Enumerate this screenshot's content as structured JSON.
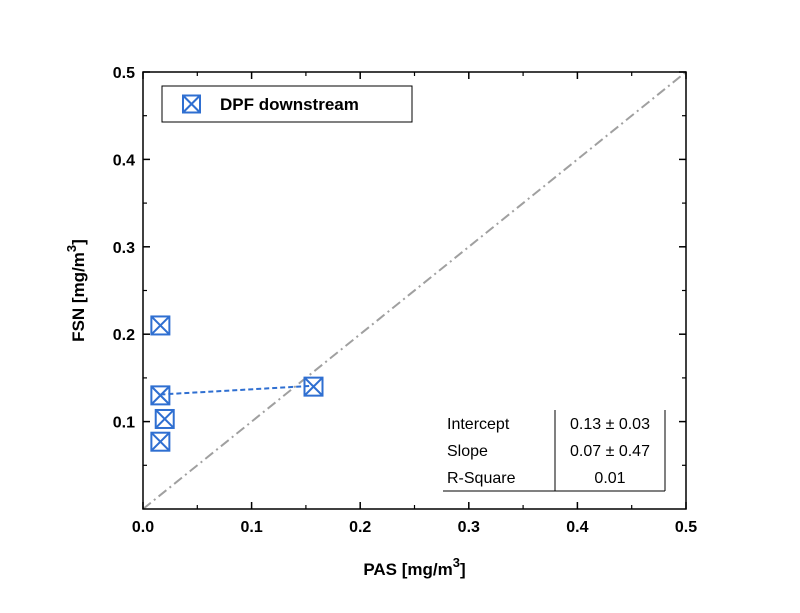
{
  "chart_data": {
    "type": "scatter",
    "xlabel_main": "PAS [mg/m",
    "xlabel_sup": "3",
    "xlabel_tail": "]",
    "ylabel_main": "FSN [mg/m",
    "ylabel_sup": "3",
    "ylabel_tail": "]",
    "xlim": [
      0,
      0.5
    ],
    "ylim": [
      0,
      0.5
    ],
    "x_ticks": [
      "0.0",
      "0.1",
      "0.2",
      "0.3",
      "0.4",
      "0.5"
    ],
    "y_ticks": [
      "0.1",
      "0.2",
      "0.3",
      "0.4",
      "0.5"
    ],
    "legend_position": "top-left",
    "series": [
      {
        "name": "DPF downstream",
        "color": "#2f6fd1",
        "marker": "square-x",
        "x": [
          0.016,
          0.016,
          0.02,
          0.016,
          0.157
        ],
        "y": [
          0.21,
          0.13,
          0.103,
          0.077,
          0.14
        ]
      }
    ],
    "fit_line": {
      "color": "#2f6fd1",
      "style": "dashed",
      "x": [
        0.016,
        0.157
      ],
      "y": [
        0.131,
        0.141
      ]
    },
    "identity_line": {
      "color": "#a0a0a0",
      "style": "dash-dot",
      "x": [
        0,
        0.5
      ],
      "y": [
        0,
        0.5
      ]
    },
    "stats_table": {
      "rows": [
        {
          "label": "Intercept",
          "value": "0.13 ± 0.03"
        },
        {
          "label": "Slope",
          "value": "0.07 ± 0.47"
        },
        {
          "label": "R-Square",
          "value": "0.01"
        }
      ]
    }
  }
}
